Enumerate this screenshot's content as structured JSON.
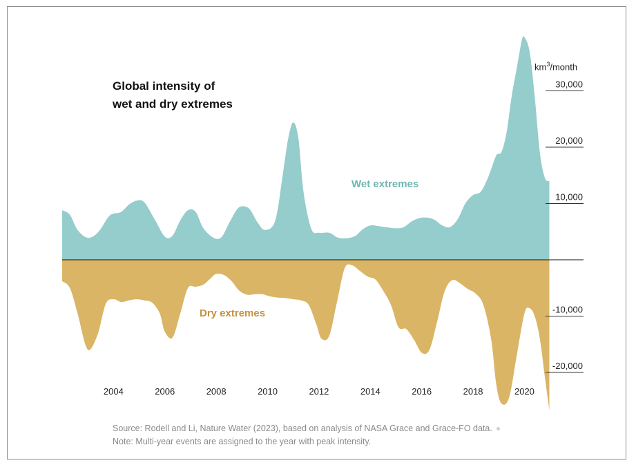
{
  "title_lines": [
    "Global intensity of",
    "wet and dry extremes"
  ],
  "unit_base": "km",
  "unit_exp": "3",
  "unit_tail": "/month",
  "source_lines": [
    "Source: Rodell and Li, Nature Water (2023), based on analysis of NASA Grace and Grace-FO data.",
    "Note: Multi-year events are assigned to the year with peak intensity."
  ],
  "colors": {
    "wet": "#95cccc",
    "dry": "#d9b565",
    "wet_label": "#6fb5b1",
    "dry_label": "#c4923a",
    "axis": "#111111"
  },
  "chart_data": {
    "type": "area",
    "series": [
      {
        "name": "Wet extremes",
        "x": [
          2002.0,
          2002.3,
          2002.6,
          2003.0,
          2003.4,
          2003.8,
          2004.0,
          2004.3,
          2004.6,
          2004.9,
          2005.2,
          2005.6,
          2006.0,
          2006.3,
          2006.6,
          2006.9,
          2007.2,
          2007.5,
          2007.9,
          2008.2,
          2008.5,
          2008.8,
          2009.0,
          2009.3,
          2009.6,
          2009.9,
          2010.3,
          2010.6,
          2010.8,
          2011.0,
          2011.2,
          2011.4,
          2011.7,
          2012.0,
          2012.4,
          2012.7,
          2013.0,
          2013.4,
          2013.7,
          2014.0,
          2014.3,
          2014.6,
          2015.0,
          2015.3,
          2015.6,
          2015.9,
          2016.2,
          2016.5,
          2016.8,
          2017.1,
          2017.4,
          2017.7,
          2018.0,
          2018.3,
          2018.6,
          2018.9,
          2019.1,
          2019.3,
          2019.5,
          2019.7,
          2019.9,
          2020.0,
          2020.2,
          2020.4,
          2020.6,
          2020.8,
          2020.97
        ],
        "values": [
          8800,
          8000,
          5300,
          3900,
          4900,
          7600,
          8200,
          8500,
          9800,
          10500,
          10200,
          7200,
          4100,
          4300,
          7000,
          8800,
          8500,
          5600,
          3900,
          4000,
          6500,
          8900,
          9500,
          9000,
          6700,
          5300,
          7000,
          15500,
          21500,
          24400,
          21500,
          12000,
          5500,
          4800,
          4800,
          4000,
          3800,
          4200,
          5400,
          6100,
          6000,
          5800,
          5600,
          5800,
          6800,
          7400,
          7500,
          7100,
          6100,
          5800,
          7200,
          10000,
          11500,
          12100,
          14800,
          18500,
          19100,
          22500,
          29000,
          34000,
          39000,
          39500,
          37000,
          29000,
          19000,
          14500,
          14000
        ]
      },
      {
        "name": "Dry extremes",
        "x": [
          2002.0,
          2002.3,
          2002.6,
          2002.9,
          2003.1,
          2003.4,
          2003.7,
          2004.0,
          2004.3,
          2004.6,
          2004.9,
          2005.2,
          2005.5,
          2005.8,
          2006.0,
          2006.3,
          2006.6,
          2006.9,
          2007.2,
          2007.5,
          2007.8,
          2008.0,
          2008.3,
          2008.6,
          2008.9,
          2009.2,
          2009.5,
          2009.8,
          2010.1,
          2010.4,
          2010.7,
          2011.0,
          2011.3,
          2011.6,
          2011.9,
          2012.1,
          2012.4,
          2012.7,
          2013.0,
          2013.3,
          2013.6,
          2013.9,
          2014.2,
          2014.5,
          2014.8,
          2015.1,
          2015.4,
          2015.7,
          2016.0,
          2016.3,
          2016.6,
          2016.9,
          2017.2,
          2017.5,
          2017.8,
          2018.1,
          2018.4,
          2018.7,
          2018.9,
          2019.1,
          2019.4,
          2019.7,
          2020.0,
          2020.2,
          2020.4,
          2020.6,
          2020.8,
          2020.97
        ],
        "values": [
          -3800,
          -5000,
          -9500,
          -15000,
          -15900,
          -13000,
          -7800,
          -7000,
          -7500,
          -7200,
          -7000,
          -7200,
          -7600,
          -9500,
          -12800,
          -13800,
          -9500,
          -5000,
          -4800,
          -4400,
          -3200,
          -2500,
          -2700,
          -3800,
          -5500,
          -6200,
          -6100,
          -6100,
          -6500,
          -6700,
          -6800,
          -7000,
          -7200,
          -8000,
          -11500,
          -14000,
          -13500,
          -7500,
          -1500,
          -1000,
          -2000,
          -3000,
          -3500,
          -5500,
          -8000,
          -12000,
          -12300,
          -14200,
          -16500,
          -16000,
          -11000,
          -5500,
          -3600,
          -4200,
          -5200,
          -6000,
          -8000,
          -14000,
          -22000,
          -25500,
          -24500,
          -17000,
          -9500,
          -8600,
          -10000,
          -14000,
          -21000,
          -26700
        ]
      }
    ],
    "xlim": [
      2002,
      2022.3
    ],
    "ylim": [
      -28000,
      41000
    ],
    "x_ticks": [
      2004,
      2006,
      2008,
      2010,
      2012,
      2014,
      2016,
      2018,
      2020
    ],
    "x_tick_labels": [
      "2004",
      "2006",
      "2008",
      "2010",
      "2012",
      "2014",
      "2016",
      "2018",
      "2020"
    ],
    "y_ticks": [
      30000,
      20000,
      10000,
      -10000,
      -20000
    ],
    "y_tick_labels": [
      "30,000",
      "20,000",
      "10,000",
      "-10,000",
      "-20,000"
    ],
    "series_labels": [
      "Wet extremes",
      "Dry extremes"
    ]
  }
}
